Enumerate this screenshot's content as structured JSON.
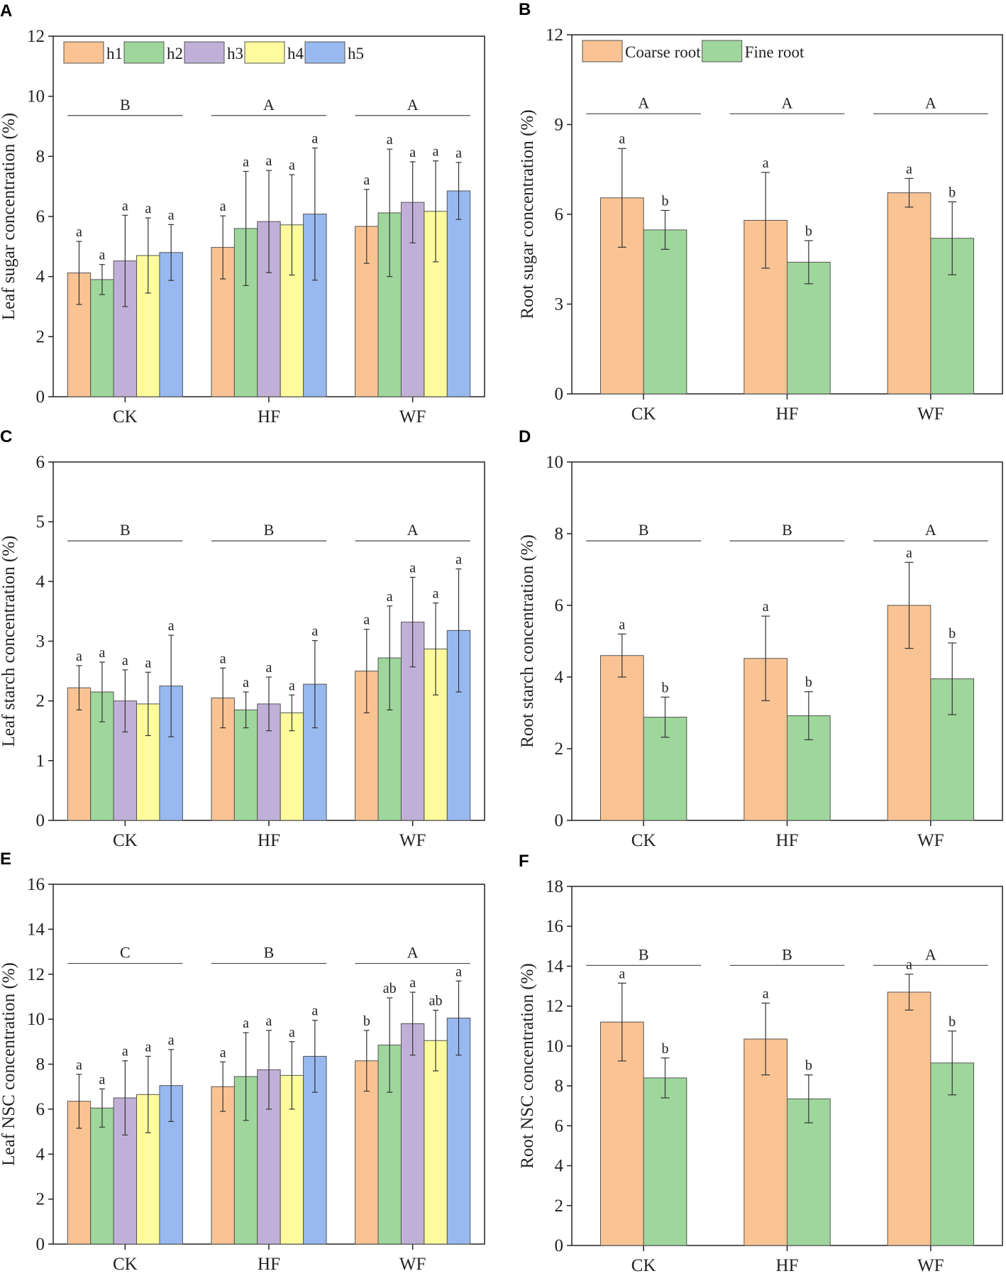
{
  "colors": {
    "h1": "#F9C393",
    "h2": "#9ED69B",
    "h3": "#C0B0D8",
    "h4": "#FDFB9B",
    "h5": "#98B9F0",
    "Coarse root": "#F9C393",
    "Fine root": "#9ED69B"
  },
  "chart_data": [
    {
      "panel": "A",
      "type": "bar",
      "ylabel": "Leaf sugar concentration (%)",
      "ylim": [
        0,
        12
      ],
      "yticks": [
        0,
        2,
        4,
        6,
        8,
        10,
        12
      ],
      "categories": [
        "CK",
        "HF",
        "WF"
      ],
      "group_letters": [
        "B",
        "A",
        "A"
      ],
      "legend": true,
      "legend_placement": "top-left",
      "series": [
        {
          "name": "h1",
          "values": [
            4.12,
            4.97,
            5.67
          ],
          "errors": [
            1.05,
            1.05,
            1.23
          ],
          "letters": [
            "a",
            "a",
            "a"
          ]
        },
        {
          "name": "h2",
          "values": [
            3.9,
            5.6,
            6.12
          ],
          "errors": [
            0.5,
            1.9,
            2.12
          ],
          "letters": [
            "a",
            "a",
            "a"
          ]
        },
        {
          "name": "h3",
          "values": [
            4.52,
            5.83,
            6.47
          ],
          "errors": [
            1.52,
            1.7,
            1.35
          ],
          "letters": [
            "a",
            "a",
            "a"
          ]
        },
        {
          "name": "h4",
          "values": [
            4.7,
            5.72,
            6.17
          ],
          "errors": [
            1.25,
            1.67,
            1.68
          ],
          "letters": [
            "a",
            "a",
            "a"
          ]
        },
        {
          "name": "h5",
          "values": [
            4.8,
            6.08,
            6.85
          ],
          "errors": [
            0.93,
            2.2,
            0.95
          ],
          "letters": [
            "a",
            "a",
            "a"
          ]
        }
      ]
    },
    {
      "panel": "B",
      "type": "bar",
      "ylabel": "Root sugar concentration (%)",
      "ylim": [
        0,
        12
      ],
      "yticks": [
        0,
        3,
        6,
        9,
        12
      ],
      "categories": [
        "CK",
        "HF",
        "WF"
      ],
      "group_letters": [
        "A",
        "A",
        "A"
      ],
      "legend": true,
      "legend_placement": "top-left",
      "series": [
        {
          "name": "Coarse root",
          "values": [
            6.55,
            5.8,
            6.72
          ],
          "errors": [
            1.65,
            1.6,
            0.48
          ],
          "letters": [
            "a",
            "a",
            "a"
          ]
        },
        {
          "name": "Fine root",
          "values": [
            5.48,
            4.4,
            5.2
          ],
          "errors": [
            0.65,
            0.72,
            1.22
          ],
          "letters": [
            "b",
            "b",
            "b"
          ]
        }
      ]
    },
    {
      "panel": "C",
      "type": "bar",
      "ylabel": "Leaf starch concentration (%)",
      "ylim": [
        0,
        6
      ],
      "yticks": [
        0,
        1,
        2,
        3,
        4,
        5,
        6
      ],
      "categories": [
        "CK",
        "HF",
        "WF"
      ],
      "group_letters": [
        "B",
        "B",
        "A"
      ],
      "legend": false,
      "series": [
        {
          "name": "h1",
          "values": [
            2.22,
            2.05,
            2.5
          ],
          "errors": [
            0.37,
            0.5,
            0.7
          ],
          "letters": [
            "a",
            "a",
            "a"
          ]
        },
        {
          "name": "h2",
          "values": [
            2.15,
            1.85,
            2.72
          ],
          "errors": [
            0.5,
            0.3,
            0.87
          ],
          "letters": [
            "a",
            "a",
            "a"
          ]
        },
        {
          "name": "h3",
          "values": [
            2.0,
            1.95,
            3.32
          ],
          "errors": [
            0.52,
            0.45,
            0.75
          ],
          "letters": [
            "a",
            "a",
            "a"
          ]
        },
        {
          "name": "h4",
          "values": [
            1.95,
            1.8,
            2.87
          ],
          "errors": [
            0.53,
            0.3,
            0.77
          ],
          "letters": [
            "a",
            "a",
            "a"
          ]
        },
        {
          "name": "h5",
          "values": [
            2.25,
            2.28,
            3.18
          ],
          "errors": [
            0.85,
            0.73,
            1.03
          ],
          "letters": [
            "a",
            "a",
            "a"
          ]
        }
      ]
    },
    {
      "panel": "D",
      "type": "bar",
      "ylabel": "Root starch concentration (%)",
      "ylim": [
        0,
        10
      ],
      "yticks": [
        0,
        2,
        4,
        6,
        8,
        10
      ],
      "categories": [
        "CK",
        "HF",
        "WF"
      ],
      "group_letters": [
        "B",
        "B",
        "A"
      ],
      "legend": false,
      "series": [
        {
          "name": "Coarse root",
          "values": [
            4.6,
            4.52,
            6.0
          ],
          "errors": [
            0.6,
            1.18,
            1.2
          ],
          "letters": [
            "a",
            "a",
            "a"
          ]
        },
        {
          "name": "Fine root",
          "values": [
            2.88,
            2.92,
            3.95
          ],
          "errors": [
            0.56,
            0.67,
            1.0
          ],
          "letters": [
            "b",
            "b",
            "b"
          ]
        }
      ]
    },
    {
      "panel": "E",
      "type": "bar",
      "ylabel": "Leaf NSC concentration (%)",
      "ylim": [
        0,
        16
      ],
      "yticks": [
        0,
        2,
        4,
        6,
        8,
        10,
        12,
        14,
        16
      ],
      "categories": [
        "CK",
        "HF",
        "WF"
      ],
      "group_letters": [
        "C",
        "B",
        "A"
      ],
      "legend": false,
      "series": [
        {
          "name": "h1",
          "values": [
            6.35,
            7.0,
            8.15
          ],
          "errors": [
            1.2,
            1.1,
            1.35
          ],
          "letters": [
            "a",
            "a",
            "b"
          ]
        },
        {
          "name": "h2",
          "values": [
            6.05,
            7.45,
            8.85
          ],
          "errors": [
            0.85,
            1.95,
            2.1
          ],
          "letters": [
            "a",
            "a",
            "ab"
          ]
        },
        {
          "name": "h3",
          "values": [
            6.5,
            7.75,
            9.8
          ],
          "errors": [
            1.65,
            1.75,
            1.4
          ],
          "letters": [
            "a",
            "a",
            "a"
          ]
        },
        {
          "name": "h4",
          "values": [
            6.65,
            7.5,
            9.05
          ],
          "errors": [
            1.7,
            1.5,
            1.35
          ],
          "letters": [
            "a",
            "a",
            "ab"
          ]
        },
        {
          "name": "h5",
          "values": [
            7.05,
            8.35,
            10.05
          ],
          "errors": [
            1.6,
            1.6,
            1.65
          ],
          "letters": [
            "a",
            "a",
            "a"
          ]
        }
      ]
    },
    {
      "panel": "F",
      "type": "bar",
      "ylabel": "Root NSC concentration (%)",
      "ylim": [
        0,
        18
      ],
      "yticks": [
        0,
        2,
        4,
        6,
        8,
        10,
        12,
        14,
        16,
        18
      ],
      "categories": [
        "CK",
        "HF",
        "WF"
      ],
      "group_letters": [
        "B",
        "B",
        "A"
      ],
      "legend": false,
      "series": [
        {
          "name": "Coarse root",
          "values": [
            11.2,
            10.35,
            12.7
          ],
          "errors": [
            1.95,
            1.8,
            0.9
          ],
          "letters": [
            "a",
            "a",
            "a"
          ]
        },
        {
          "name": "Fine root",
          "values": [
            8.4,
            7.35,
            9.15
          ],
          "errors": [
            1.0,
            1.2,
            1.6
          ],
          "letters": [
            "b",
            "b",
            "b"
          ]
        }
      ]
    }
  ]
}
